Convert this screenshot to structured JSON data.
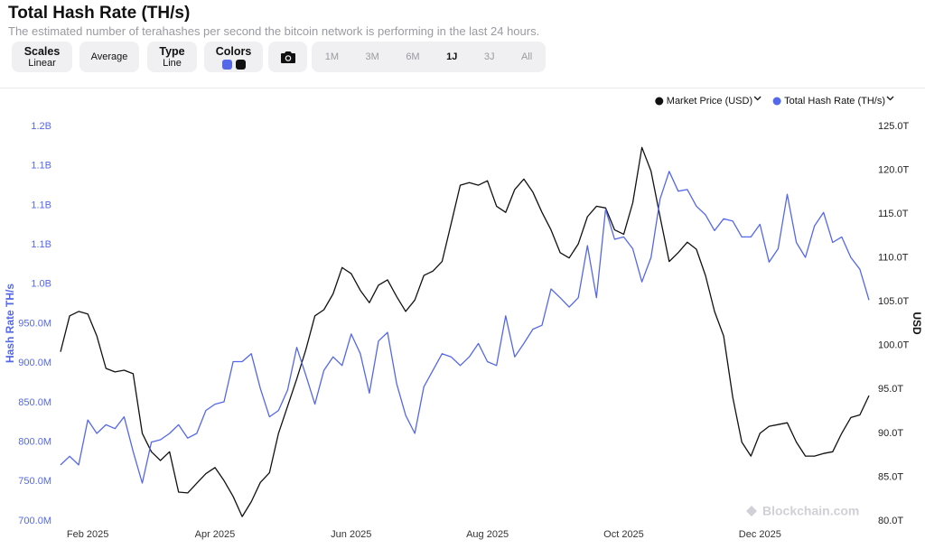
{
  "header": {
    "title": "Total Hash Rate (TH/s)",
    "subtitle": "The estimated number of terahashes per second the bitcoin network is performing in the last 24 hours."
  },
  "toolbar": {
    "scales": {
      "label": "Scales",
      "value": "Linear"
    },
    "average": "Average",
    "type": {
      "label": "Type",
      "value": "Line"
    },
    "colors": "Colors",
    "ranges": [
      "1M",
      "3M",
      "6M",
      "1J",
      "3J",
      "All"
    ],
    "selected_range": 3
  },
  "watermark": "Blockchain.com",
  "chart_data": {
    "type": "line",
    "legend": "top-right",
    "ylabel": "Hash Rate TH/s",
    "y2label": "USD",
    "categories": [
      null,
      null,
      null,
      "Feb 2025",
      null,
      null,
      null,
      null,
      null,
      null,
      null,
      null,
      null,
      null,
      null,
      null,
      null,
      "Apr 2025",
      null,
      null,
      null,
      null,
      null,
      null,
      null,
      null,
      null,
      null,
      null,
      null,
      null,
      null,
      "Jun 2025",
      null,
      null,
      null,
      null,
      null,
      null,
      null,
      null,
      null,
      null,
      null,
      null,
      null,
      null,
      "Aug 2025",
      null,
      null,
      null,
      null,
      null,
      null,
      null,
      null,
      null,
      null,
      null,
      null,
      null,
      null,
      "Oct 2025",
      null,
      null,
      null,
      null,
      null,
      null,
      null,
      null,
      null,
      null,
      null,
      null,
      null,
      null,
      "Dec 2025",
      null,
      null,
      null,
      null,
      null,
      null,
      null,
      null,
      null,
      null,
      null,
      null
    ],
    "series": [
      {
        "name": "Market Price (USD)",
        "color": "#111111",
        "axis": "y2",
        "values": [
          99300,
          103400,
          103900,
          103600,
          101100,
          97400,
          97000,
          97200,
          96800,
          90000,
          87900,
          86900,
          87900,
          83300,
          83200,
          84300,
          85400,
          86100,
          84600,
          82800,
          80500,
          82200,
          84400,
          85500,
          90000,
          93100,
          96200,
          99500,
          103400,
          104100,
          105900,
          108900,
          108200,
          106300,
          104900,
          106900,
          107500,
          105600,
          103900,
          105200,
          108000,
          108500,
          109600,
          113900,
          118300,
          118600,
          118300,
          118800,
          115900,
          115200,
          117800,
          119000,
          117500,
          115200,
          113200,
          110600,
          110000,
          111600,
          114700,
          115900,
          115700,
          113200,
          112700,
          116300,
          122600,
          119900,
          114700,
          109600,
          110600,
          111800,
          111000,
          108000,
          103900,
          101100,
          94100,
          89000,
          87400,
          90000,
          90800,
          91000,
          91200,
          89000,
          87400,
          87400,
          87700,
          87900,
          90000,
          91800,
          92100,
          94300
        ]
      },
      {
        "name": "Total Hash Rate (TH/s)",
        "color": "#5468e8",
        "values": [
          771000000.0,
          782000000.0,
          771000000.0,
          828000000.0,
          811000000.0,
          822000000.0,
          817000000.0,
          832000000.0,
          788000000.0,
          748000000.0,
          800000000.0,
          803000000.0,
          811000000.0,
          822000000.0,
          805000000.0,
          811000000.0,
          840000000.0,
          848000000.0,
          851000000.0,
          902000000.0,
          902000000.0,
          912000000.0,
          868000000.0,
          832000000.0,
          840000000.0,
          866000000.0,
          920000000.0,
          885000000.0,
          848000000.0,
          891000000.0,
          908000000.0,
          897000000.0,
          937000000.0,
          912000000.0,
          862000000.0,
          928000000.0,
          939000000.0,
          874000000.0,
          834000000.0,
          811000000.0,
          870000000.0,
          891000000.0,
          912000000.0,
          908000000.0,
          897000000.0,
          908000000.0,
          925000000.0,
          902000000.0,
          897000000.0,
          960000000.0,
          908000000.0,
          925000000.0,
          943000000.0,
          948000000.0,
          994000000.0,
          983000000.0,
          971000000.0,
          983000000.0,
          1049000000.0,
          983000000.0,
          1095000000.0,
          1057000000.0,
          1060000000.0,
          1045000000.0,
          1003000000.0,
          1034000000.0,
          1108000000.0,
          1143000000.0,
          1118000000.0,
          1120000000.0,
          1099000000.0,
          1088000000.0,
          1068000000.0,
          1083000000.0,
          1080000000.0,
          1060000000.0,
          1060000000.0,
          1076000000.0,
          1028000000.0,
          1045000000.0,
          1114000000.0,
          1053000000.0,
          1034000000.0,
          1074000000.0,
          1091000000.0,
          1053000000.0,
          1060000000.0,
          1034000000.0,
          1019000000.0,
          980000000.0
        ]
      }
    ],
    "ylim": [
      700000000.0,
      1200000000.0
    ],
    "yticks": [
      {
        "value": 700000000.0,
        "label": "700.0M"
      },
      {
        "value": 750000000.0,
        "label": "750.0M"
      },
      {
        "value": 800000000.0,
        "label": "800.0M"
      },
      {
        "value": 850000000.0,
        "label": "850.0M"
      },
      {
        "value": 900000000.0,
        "label": "900.0M"
      },
      {
        "value": 950000000.0,
        "label": "950.0M"
      },
      {
        "value": 1000000000.0,
        "label": "1.0B"
      },
      {
        "value": 1050000000.0,
        "label": "1.1B"
      },
      {
        "value": 1100000000.0,
        "label": "1.1B"
      },
      {
        "value": 1150000000.0,
        "label": "1.1B"
      },
      {
        "value": 1200000000.0,
        "label": "1.2B"
      }
    ],
    "y2lim": [
      80000,
      125000
    ],
    "y2ticks": [
      {
        "value": 80000,
        "label": "80.0T"
      },
      {
        "value": 85000,
        "label": "85.0T"
      },
      {
        "value": 90000,
        "label": "90.0T"
      },
      {
        "value": 95000,
        "label": "95.0T"
      },
      {
        "value": 100000,
        "label": "100.0T"
      },
      {
        "value": 105000,
        "label": "105.0T"
      },
      {
        "value": 110000,
        "label": "110.0T"
      },
      {
        "value": 115000,
        "label": "115.0T"
      },
      {
        "value": 120000,
        "label": "120.0T"
      },
      {
        "value": 125000,
        "label": "125.0T"
      }
    ]
  }
}
